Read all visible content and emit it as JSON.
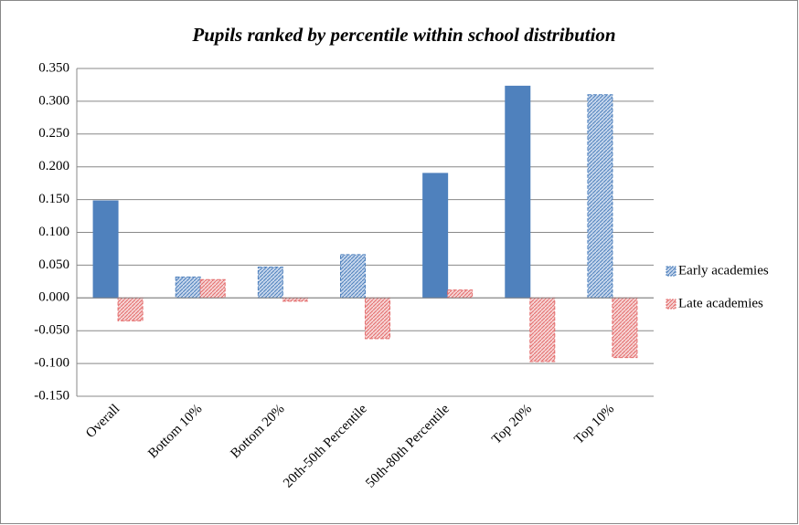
{
  "chart_data": {
    "type": "bar",
    "title": "Pupils ranked by percentile within school distribution",
    "categories": [
      "Overall",
      "Bottom 10%",
      "Bottom 20%",
      "20th-50th Percentile",
      "50th-80th Percentile",
      "Top 20%",
      "Top 10%"
    ],
    "series": [
      {
        "name": "Early academies",
        "color": "#4f81bd",
        "hatched": [
          false,
          true,
          true,
          true,
          false,
          false,
          true
        ],
        "values": [
          0.148,
          0.032,
          0.047,
          0.066,
          0.19,
          0.323,
          0.31
        ]
      },
      {
        "name": "Late academies",
        "color": "#e46c6c",
        "hatched": [
          true,
          true,
          true,
          true,
          true,
          true,
          true
        ],
        "values": [
          -0.035,
          0.028,
          -0.005,
          -0.062,
          0.012,
          -0.097,
          -0.091
        ]
      }
    ],
    "ylim": [
      -0.15,
      0.35
    ],
    "yticks": [
      {
        "value": 0.35,
        "label": "0.350"
      },
      {
        "value": 0.3,
        "label": "0.300"
      },
      {
        "value": 0.25,
        "label": "0.250"
      },
      {
        "value": 0.2,
        "label": "0.200"
      },
      {
        "value": 0.15,
        "label": "0.150"
      },
      {
        "value": 0.1,
        "label": "0.100"
      },
      {
        "value": 0.05,
        "label": "0.050"
      },
      {
        "value": 0,
        "label": "0.000"
      },
      {
        "value": -0.05,
        "label": "-0.050"
      },
      {
        "value": -0.1,
        "label": "-0.100"
      },
      {
        "value": -0.15,
        "label": "-0.150"
      }
    ],
    "grid": true,
    "legend": "right"
  }
}
